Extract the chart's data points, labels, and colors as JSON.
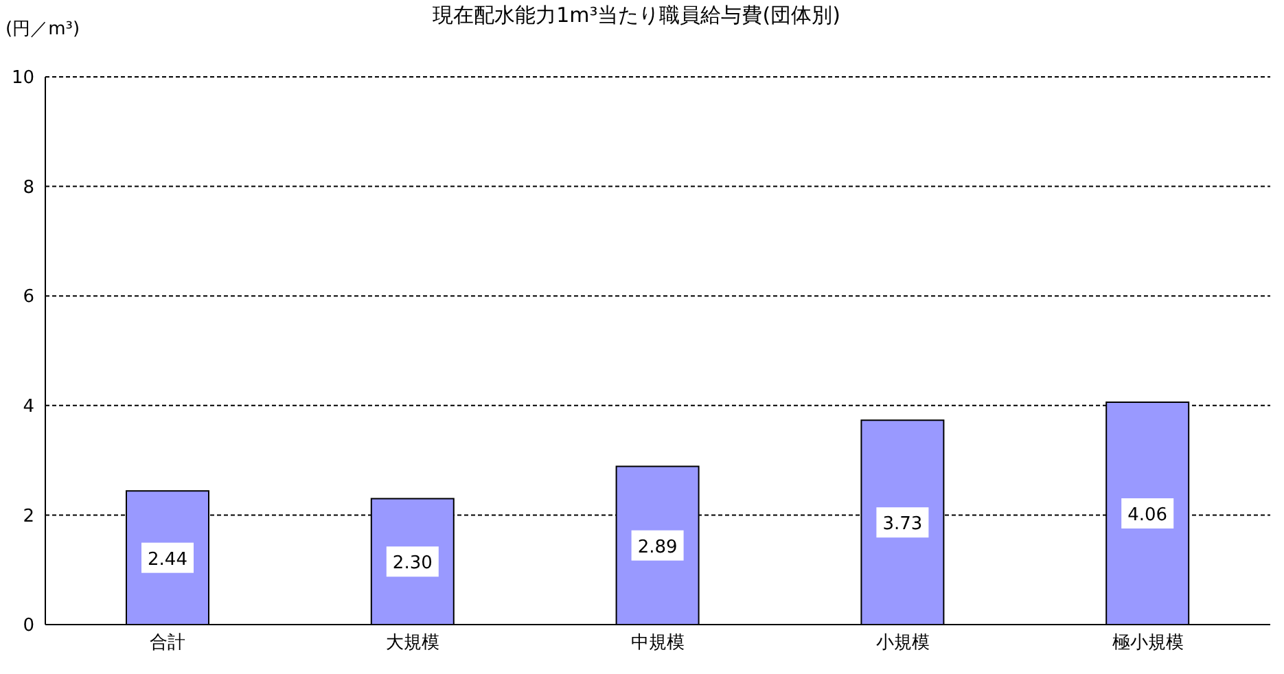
{
  "chart_data": {
    "type": "bar",
    "title": "現在配水能力1m³当たり職員給与費(団体別)",
    "ylabel": "(円／m³)",
    "categories": [
      "合計",
      "大規模",
      "中規模",
      "小規模",
      "極小規模"
    ],
    "values": [
      2.44,
      2.3,
      2.89,
      3.73,
      4.06
    ],
    "value_labels": [
      "2.44",
      "2.30",
      "2.89",
      "3.73",
      "4.06"
    ],
    "color": "#9999ff",
    "ylim": [
      0,
      10
    ],
    "yticks": [
      0,
      2,
      4,
      6,
      8,
      10
    ],
    "grid": "y"
  }
}
